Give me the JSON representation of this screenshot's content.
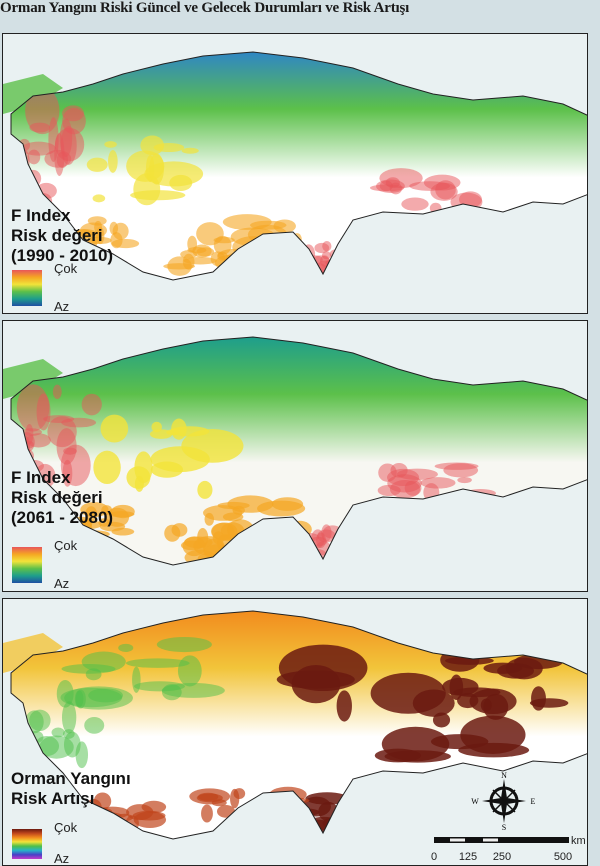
{
  "title": "Orman Yangını Riski Güncel ve Gelecek Durumları ve Risk Artışı",
  "panels": [
    {
      "title_line1": "F Index",
      "title_line2": "Risk değeri",
      "title_line3": "(1990 - 2010)",
      "legend_high": "Çok",
      "legend_low": "Az",
      "palette": [
        "#e8565a",
        "#f5a623",
        "#f2e33a",
        "#5cc04a",
        "#1e9e8c",
        "#1f4fa3"
      ]
    },
    {
      "title_line1": "F Index",
      "title_line2": "Risk değeri",
      "title_line3": "(2061 - 2080)",
      "legend_high": "Çok",
      "legend_low": "Az",
      "palette": [
        "#e8565a",
        "#f5a623",
        "#f2e33a",
        "#5cc04a",
        "#1e9e8c",
        "#1f4fa3"
      ]
    },
    {
      "title_line1": "Orman Yangını",
      "title_line2": "Risk Artışı",
      "legend_high": "Çok",
      "legend_low": "Az",
      "palette": [
        "#6b1a10",
        "#c0461c",
        "#f28c1e",
        "#f2e33a",
        "#4dbf4a",
        "#27b3c9",
        "#4a3fc8",
        "#c43cc9"
      ]
    }
  ],
  "compass": {
    "n": "N",
    "s": "S",
    "e": "E",
    "w": "W"
  },
  "scale_bar": {
    "unit": "km",
    "ticks": [
      "0",
      "125",
      "250",
      "500"
    ]
  }
}
